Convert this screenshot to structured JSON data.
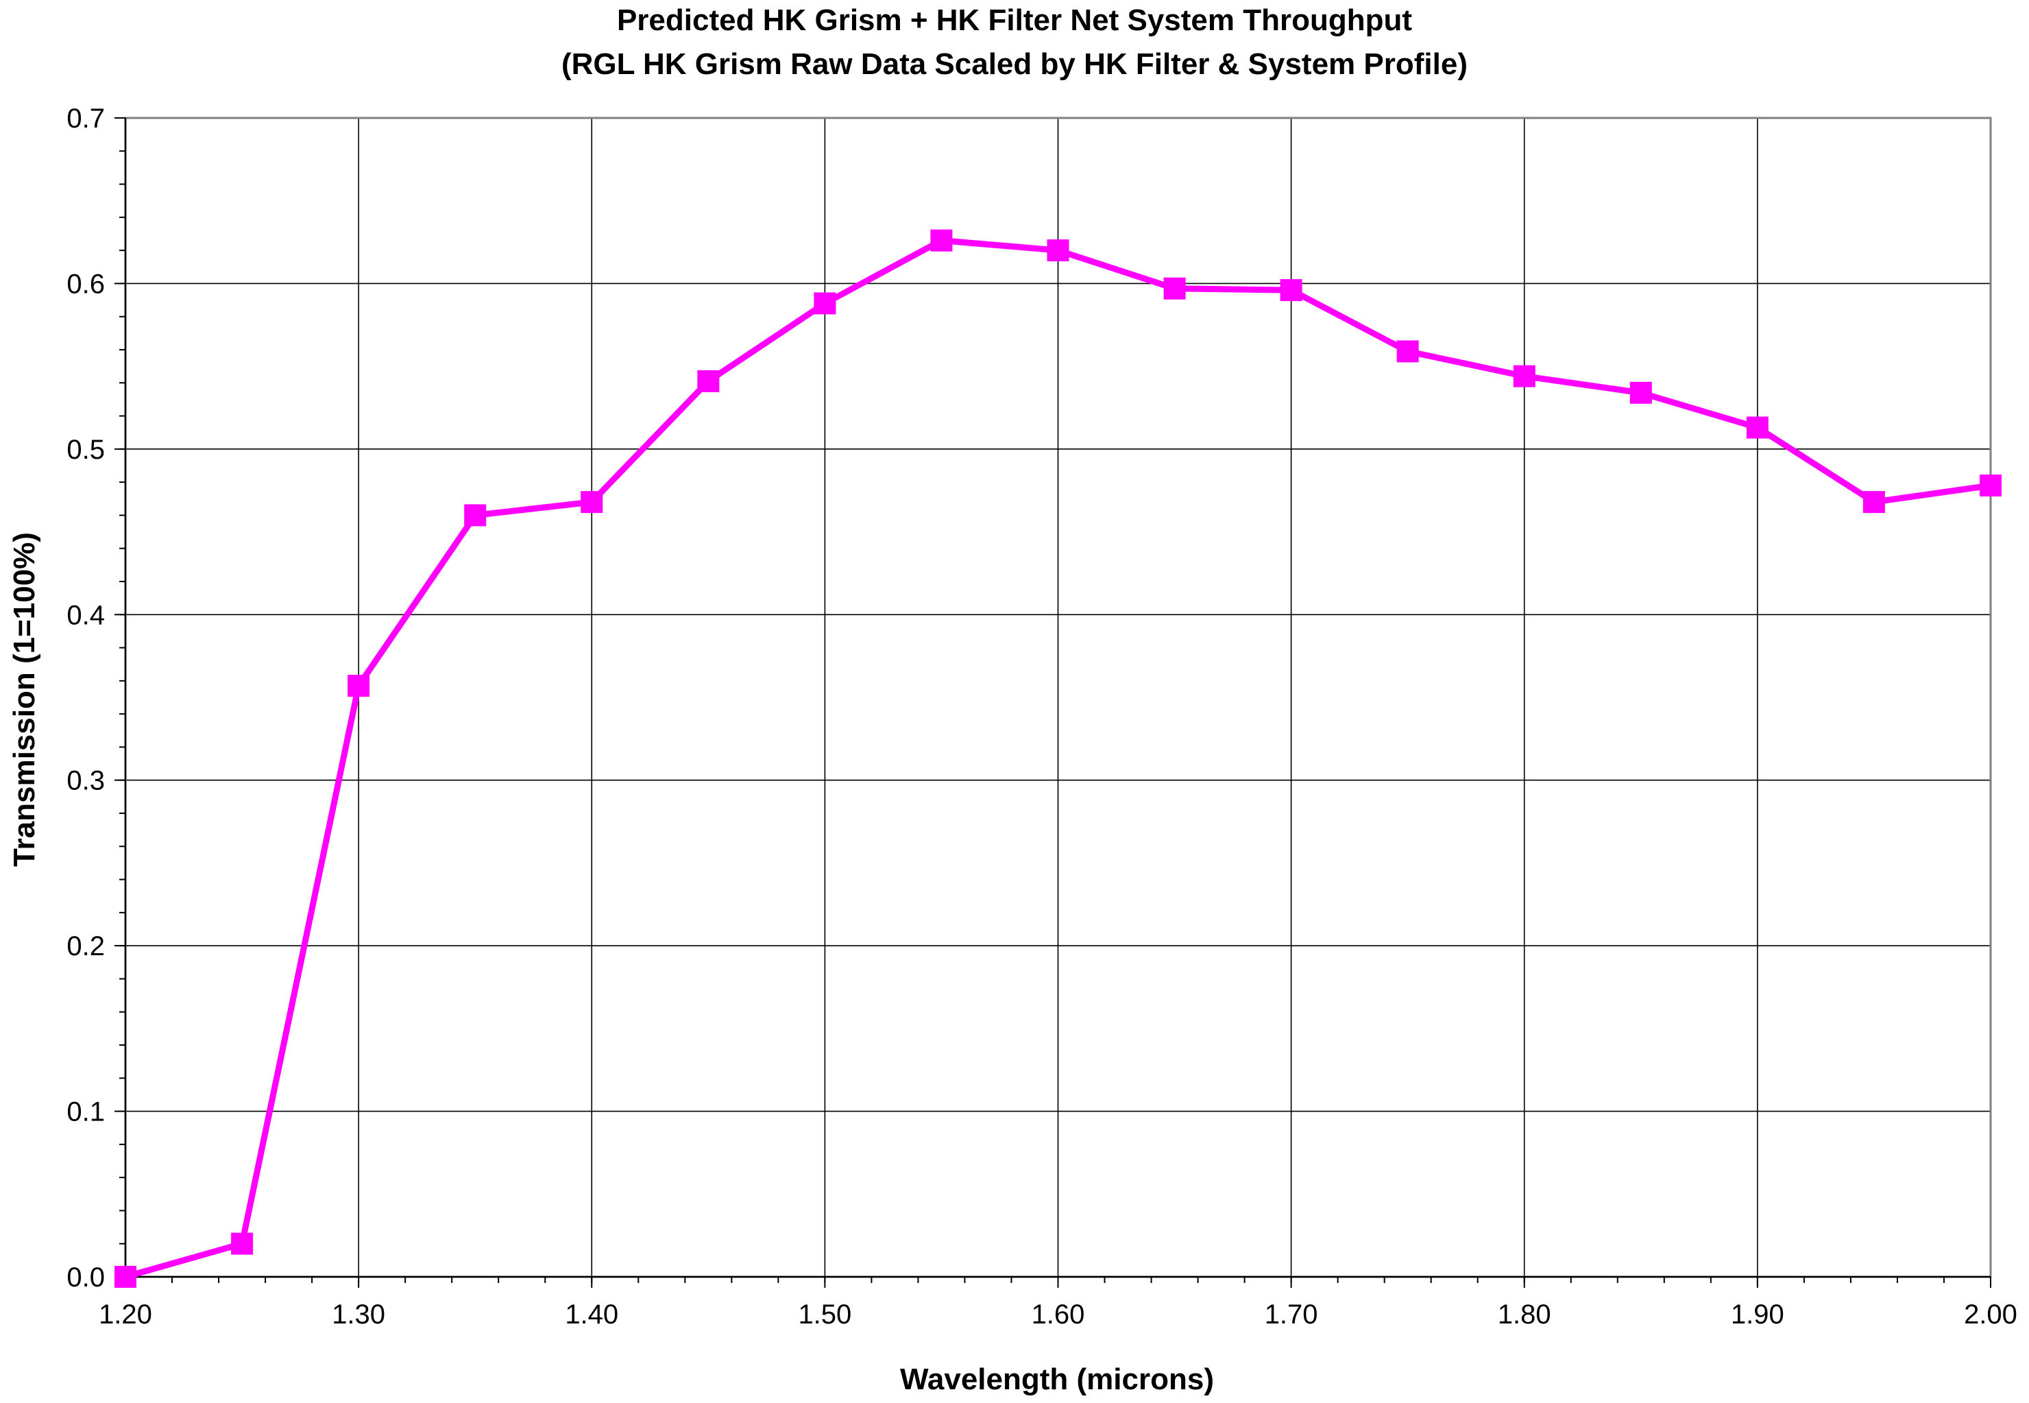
{
  "chart_data": {
    "type": "line",
    "title": "Predicted HK Grism + HK Filter Net System Throughput",
    "subtitle": "(RGL HK Grism Raw Data Scaled by HK Filter & System Profile)",
    "xlabel": "Wavelength (microns)",
    "ylabel": "Transmission (1=100%)",
    "xlim": [
      1.2,
      2.0
    ],
    "ylim": [
      0.0,
      0.7
    ],
    "x_ticks": [
      "1.20",
      "1.30",
      "1.40",
      "1.50",
      "1.60",
      "1.70",
      "1.80",
      "1.90",
      "2.00"
    ],
    "y_ticks": [
      "0.0",
      "0.1",
      "0.2",
      "0.3",
      "0.4",
      "0.5",
      "0.6",
      "0.7"
    ],
    "grid": true,
    "legend": "none",
    "series": [
      {
        "color": "#ff00ff",
        "marker": "square",
        "x": [
          1.2,
          1.25,
          1.3,
          1.35,
          1.4,
          1.45,
          1.5,
          1.55,
          1.6,
          1.65,
          1.7,
          1.75,
          1.8,
          1.85,
          1.9,
          1.95,
          2.0
        ],
        "y": [
          0.0,
          0.02,
          0.357,
          0.46,
          0.468,
          0.541,
          0.588,
          0.626,
          0.62,
          0.597,
          0.596,
          0.559,
          0.544,
          0.534,
          0.513,
          0.468,
          0.478
        ]
      }
    ]
  }
}
